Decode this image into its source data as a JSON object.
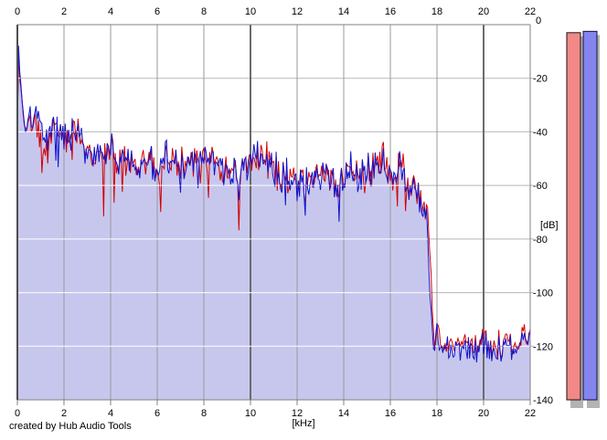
{
  "credit": "created by Hub Audio Tools",
  "chart_data": {
    "type": "line",
    "title": "",
    "xlabel": "[kHz]",
    "ylabel": "[dB]",
    "xlim": [
      0,
      22
    ],
    "ylim": [
      -140,
      0
    ],
    "x_ticks": [
      0,
      2,
      4,
      6,
      8,
      10,
      12,
      14,
      16,
      18,
      20,
      22
    ],
    "y_ticks": [
      0,
      -20,
      -40,
      -60,
      -80,
      -100,
      -120,
      -140
    ],
    "grid": "on",
    "major_x_gridlines_khz": [
      10,
      20
    ],
    "bin_step_khz": 0.05,
    "noise_halfrange_db": [
      [
        0,
        1.5
      ],
      [
        0.1,
        3
      ],
      [
        0.3,
        5
      ],
      [
        0.8,
        7
      ],
      [
        2,
        8
      ],
      [
        5,
        8
      ],
      [
        9,
        8
      ],
      [
        12,
        9
      ],
      [
        15,
        9
      ],
      [
        16.5,
        8
      ],
      [
        17.4,
        6
      ],
      [
        17.8,
        4
      ],
      [
        18.1,
        5
      ],
      [
        18.4,
        6
      ],
      [
        22,
        6
      ]
    ],
    "shared_seed": 20240607,
    "series": [
      {
        "name": "red-trace",
        "color": "#d40000",
        "seed": 911,
        "envelope_khz_db": [
          [
            0,
            -38
          ],
          [
            0.05,
            -12
          ],
          [
            0.1,
            -19
          ],
          [
            0.2,
            -28
          ],
          [
            0.3,
            -40
          ],
          [
            0.45,
            -35
          ],
          [
            0.6,
            -37
          ],
          [
            0.8,
            -35
          ],
          [
            1.0,
            -40
          ],
          [
            1.2,
            -45
          ],
          [
            1.45,
            -41
          ],
          [
            1.7,
            -35
          ],
          [
            1.9,
            -42
          ],
          [
            2.2,
            -43
          ],
          [
            2.5,
            -38
          ],
          [
            2.8,
            -46
          ],
          [
            3.2,
            -48
          ],
          [
            3.6,
            -50
          ],
          [
            4.0,
            -48
          ],
          [
            4.4,
            -52
          ],
          [
            4.8,
            -50
          ],
          [
            5.2,
            -53
          ],
          [
            5.6,
            -51
          ],
          [
            6.0,
            -53
          ],
          [
            6.4,
            -50
          ],
          [
            6.8,
            -52
          ],
          [
            7.2,
            -53
          ],
          [
            7.6,
            -51
          ],
          [
            8.0,
            -52
          ],
          [
            8.4,
            -49
          ],
          [
            8.8,
            -53
          ],
          [
            9.2,
            -55
          ],
          [
            9.6,
            -54
          ],
          [
            10.0,
            -50
          ],
          [
            10.4,
            -48
          ],
          [
            10.8,
            -53
          ],
          [
            11.2,
            -55
          ],
          [
            11.6,
            -56
          ],
          [
            12.0,
            -58
          ],
          [
            12.4,
            -60
          ],
          [
            12.8,
            -57
          ],
          [
            13.2,
            -53
          ],
          [
            13.6,
            -60
          ],
          [
            14.0,
            -55
          ],
          [
            14.4,
            -52
          ],
          [
            14.8,
            -57
          ],
          [
            15.2,
            -52
          ],
          [
            15.6,
            -50
          ],
          [
            16.0,
            -55
          ],
          [
            16.4,
            -54
          ],
          [
            16.8,
            -58
          ],
          [
            17.1,
            -61
          ],
          [
            17.35,
            -65
          ],
          [
            17.6,
            -70
          ],
          [
            17.72,
            -88
          ],
          [
            17.82,
            -110
          ],
          [
            17.92,
            -120
          ],
          [
            18.05,
            -112
          ],
          [
            18.15,
            -119
          ],
          [
            18.5,
            -119
          ],
          [
            19.0,
            -119
          ],
          [
            19.5,
            -120
          ],
          [
            20.0,
            -118
          ],
          [
            20.5,
            -120
          ],
          [
            21.0,
            -119
          ],
          [
            21.5,
            -119
          ],
          [
            21.9,
            -116
          ],
          [
            22.0,
            -113
          ]
        ]
      },
      {
        "name": "blue-trace",
        "color": "#1212cc",
        "fill": "#c7c7ee",
        "seed": 4242,
        "envelope_khz_db": [
          [
            0,
            -40
          ],
          [
            0.05,
            -9
          ],
          [
            0.1,
            -17
          ],
          [
            0.2,
            -27
          ],
          [
            0.3,
            -39
          ],
          [
            0.45,
            -34
          ],
          [
            0.6,
            -36
          ],
          [
            0.8,
            -34
          ],
          [
            1.0,
            -39
          ],
          [
            1.2,
            -44
          ],
          [
            1.45,
            -40
          ],
          [
            1.7,
            -34
          ],
          [
            1.9,
            -41
          ],
          [
            2.2,
            -42
          ],
          [
            2.5,
            -39
          ],
          [
            2.8,
            -45
          ],
          [
            3.2,
            -47
          ],
          [
            3.6,
            -49
          ],
          [
            4.0,
            -47
          ],
          [
            4.4,
            -51
          ],
          [
            4.8,
            -49
          ],
          [
            5.2,
            -52
          ],
          [
            5.6,
            -50
          ],
          [
            6.0,
            -52
          ],
          [
            6.4,
            -49
          ],
          [
            6.8,
            -51
          ],
          [
            7.2,
            -52
          ],
          [
            7.6,
            -50
          ],
          [
            8.0,
            -53
          ],
          [
            8.4,
            -50
          ],
          [
            8.8,
            -54
          ],
          [
            9.2,
            -56
          ],
          [
            9.6,
            -55
          ],
          [
            10.0,
            -51
          ],
          [
            10.4,
            -49
          ],
          [
            10.8,
            -54
          ],
          [
            11.2,
            -56
          ],
          [
            11.6,
            -57
          ],
          [
            12.0,
            -59
          ],
          [
            12.4,
            -61
          ],
          [
            12.8,
            -58
          ],
          [
            13.2,
            -54
          ],
          [
            13.6,
            -61
          ],
          [
            14.0,
            -56
          ],
          [
            14.4,
            -53
          ],
          [
            14.8,
            -58
          ],
          [
            15.2,
            -53
          ],
          [
            15.6,
            -51
          ],
          [
            16.0,
            -56
          ],
          [
            16.4,
            -55
          ],
          [
            16.8,
            -59
          ],
          [
            17.1,
            -62
          ],
          [
            17.35,
            -66
          ],
          [
            17.55,
            -72
          ],
          [
            17.65,
            -88
          ],
          [
            17.75,
            -108
          ],
          [
            17.85,
            -121
          ],
          [
            18.0,
            -113
          ],
          [
            18.1,
            -120
          ],
          [
            18.5,
            -121
          ],
          [
            19.0,
            -120
          ],
          [
            19.5,
            -122
          ],
          [
            20.0,
            -120
          ],
          [
            20.5,
            -121
          ],
          [
            21.0,
            -120
          ],
          [
            21.5,
            -121
          ],
          [
            21.9,
            -117
          ],
          [
            22.0,
            -114
          ]
        ]
      }
    ]
  },
  "meters": {
    "bars": [
      {
        "name": "left-level-meter",
        "color": "#f28888",
        "border": "#141414",
        "value_db": -3.0
      },
      {
        "name": "right-level-meter",
        "color": "#8585ef",
        "border": "#101040",
        "value_db": -2.5
      }
    ],
    "shadow_color": "#b3b3b3"
  },
  "colors": {
    "background": "#ffffff",
    "grid_h": "#b8b8b8",
    "grid_v": "#9a9a9a",
    "grid_v_major": "#6b6b6b",
    "grid_in_fill": "#ffffff",
    "frame": "#808080",
    "frame_left": "#4d4d4d",
    "text": "#000000"
  }
}
